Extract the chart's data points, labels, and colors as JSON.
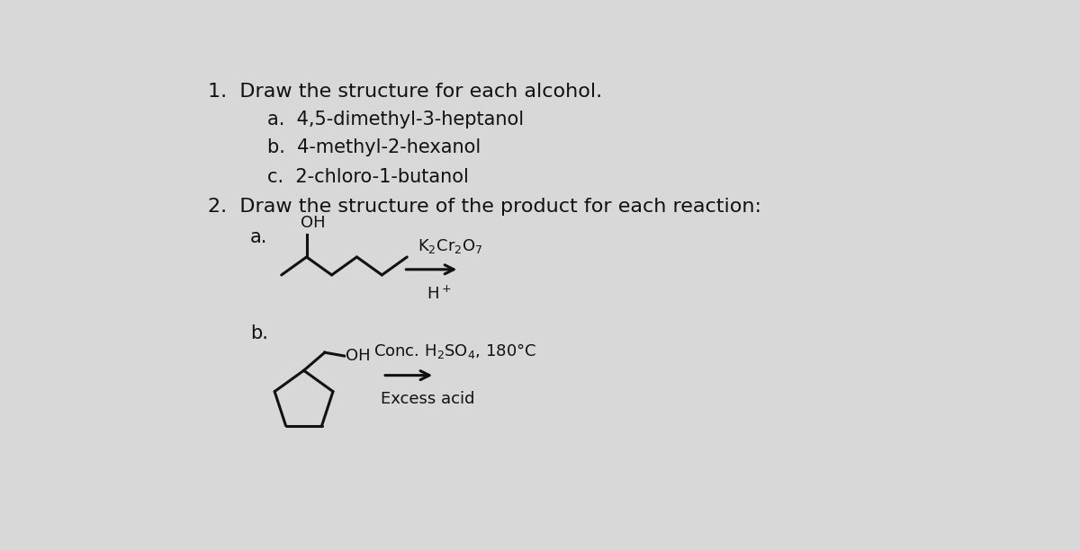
{
  "bg_color": "#d8d8d8",
  "text_color": "#111111",
  "title1": "1.  Draw the structure for each alcohol.",
  "item1a": "a.  4,5-dimethyl-3-heptanol",
  "item1b": "b.  4-methyl-2-hexanol",
  "item1c": "c.  2-chloro-1-butanol",
  "title2": "2.  Draw the structure of the product for each reaction:",
  "item2a": "a.",
  "item2b": "b.",
  "font_size_title": 16,
  "font_size_item": 15,
  "font_size_chem": 13,
  "font_size_mol": 12
}
